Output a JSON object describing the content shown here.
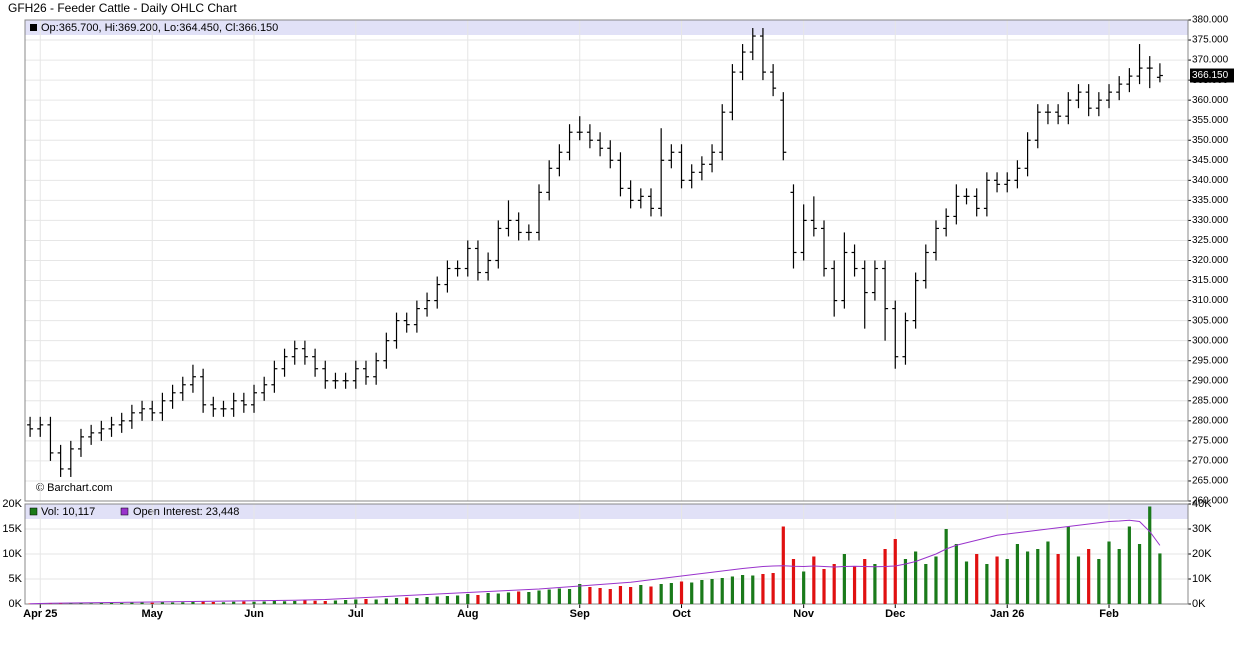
{
  "chart_data": [
    {
      "type": "ohlc",
      "title": "GFH26 - Feeder Cattle - Daily OHLC Chart",
      "legend": "Op:365.700, Hi:369.200, Lo:364.450, Cl:366.150",
      "watermark": "© Barchart.com",
      "color": "#000000",
      "grid": true,
      "categories": [
        null,
        "Apr 25",
        null,
        null,
        null,
        null,
        null,
        null,
        null,
        null,
        null,
        null,
        "May",
        null,
        null,
        null,
        null,
        null,
        null,
        null,
        null,
        null,
        "Jun",
        null,
        null,
        null,
        null,
        null,
        null,
        null,
        null,
        null,
        "Jul",
        null,
        null,
        null,
        null,
        null,
        null,
        null,
        null,
        null,
        null,
        "Aug",
        null,
        null,
        null,
        null,
        null,
        null,
        null,
        null,
        null,
        null,
        "Sep",
        null,
        null,
        null,
        null,
        null,
        null,
        null,
        null,
        null,
        "Oct",
        null,
        null,
        null,
        null,
        null,
        null,
        null,
        null,
        null,
        null,
        null,
        "Nov",
        null,
        null,
        null,
        null,
        null,
        null,
        null,
        null,
        "Dec",
        null,
        null,
        null,
        null,
        null,
        null,
        null,
        null,
        null,
        null,
        "Jan 26",
        null,
        null,
        null,
        null,
        null,
        null,
        null,
        null,
        null,
        "Feb",
        null,
        null,
        null,
        null,
        null
      ],
      "ohlc": [
        [
          279,
          281,
          276,
          278
        ],
        [
          278,
          281,
          276,
          279
        ],
        [
          279,
          281,
          270,
          272
        ],
        [
          272,
          274,
          266,
          268
        ],
        [
          268,
          275,
          266,
          273
        ],
        [
          273,
          278,
          271,
          276
        ],
        [
          276,
          279,
          274,
          277
        ],
        [
          277,
          280,
          275,
          278
        ],
        [
          278,
          281,
          276,
          279
        ],
        [
          279,
          282,
          277,
          280
        ],
        [
          280,
          284,
          278,
          282
        ],
        [
          282,
          285,
          280,
          283
        ],
        [
          283,
          285,
          280,
          282
        ],
        [
          282,
          287,
          280,
          285
        ],
        [
          285,
          289,
          283,
          287
        ],
        [
          287,
          291,
          285,
          289
        ],
        [
          289,
          294,
          287,
          291
        ],
        [
          291,
          293,
          282,
          284
        ],
        [
          284,
          286,
          281,
          283
        ],
        [
          283,
          285,
          281,
          283
        ],
        [
          283,
          287,
          281,
          285
        ],
        [
          285,
          287,
          282,
          284
        ],
        [
          284,
          289,
          282,
          287
        ],
        [
          287,
          291,
          285,
          289
        ],
        [
          289,
          295,
          287,
          293
        ],
        [
          293,
          298,
          291,
          296
        ],
        [
          296,
          300,
          294,
          298
        ],
        [
          298,
          300,
          294,
          296
        ],
        [
          296,
          298,
          291,
          293
        ],
        [
          293,
          295,
          288,
          290
        ],
        [
          290,
          292,
          288,
          290
        ],
        [
          290,
          292,
          288,
          290
        ],
        [
          290,
          295,
          288,
          293
        ],
        [
          293,
          295,
          289,
          291
        ],
        [
          291,
          297,
          289,
          295
        ],
        [
          295,
          302,
          293,
          300
        ],
        [
          300,
          307,
          298,
          305
        ],
        [
          305,
          307,
          302,
          304
        ],
        [
          304,
          310,
          302,
          308
        ],
        [
          308,
          312,
          306,
          310
        ],
        [
          310,
          316,
          308,
          314
        ],
        [
          314,
          320,
          312,
          318
        ],
        [
          318,
          320,
          316,
          318
        ],
        [
          318,
          325,
          316,
          323
        ],
        [
          323,
          325,
          315,
          317
        ],
        [
          317,
          322,
          315,
          320
        ],
        [
          320,
          330,
          318,
          328
        ],
        [
          328,
          335,
          326,
          330
        ],
        [
          330,
          332,
          325,
          327
        ],
        [
          327,
          329,
          325,
          327
        ],
        [
          327,
          339,
          325,
          337
        ],
        [
          337,
          345,
          335,
          343
        ],
        [
          343,
          349,
          341,
          347
        ],
        [
          347,
          354,
          345,
          352
        ],
        [
          352,
          356,
          350,
          352
        ],
        [
          352,
          354,
          348,
          350
        ],
        [
          350,
          352,
          346,
          348
        ],
        [
          348,
          350,
          343,
          345
        ],
        [
          345,
          347,
          336,
          338
        ],
        [
          338,
          340,
          333,
          335
        ],
        [
          335,
          338,
          333,
          336
        ],
        [
          336,
          338,
          331,
          333
        ],
        [
          333,
          353,
          331,
          345
        ],
        [
          345,
          349,
          343,
          347
        ],
        [
          347,
          349,
          338,
          340
        ],
        [
          340,
          344,
          338,
          342
        ],
        [
          342,
          346,
          340,
          344
        ],
        [
          344,
          349,
          342,
          347
        ],
        [
          347,
          359,
          345,
          357
        ],
        [
          357,
          369,
          355,
          367
        ],
        [
          367,
          374,
          365,
          372
        ],
        [
          372,
          378,
          370,
          376
        ],
        [
          376,
          378,
          365,
          367
        ],
        [
          367,
          369,
          361,
          363
        ],
        [
          360,
          362,
          345,
          347
        ],
        [
          337,
          339,
          318,
          322
        ],
        [
          322,
          334,
          320,
          330
        ],
        [
          330,
          336,
          326,
          328
        ],
        [
          328,
          330,
          316,
          318
        ],
        [
          318,
          320,
          306,
          310
        ],
        [
          310,
          327,
          308,
          322
        ],
        [
          322,
          324,
          316,
          318
        ],
        [
          318,
          320,
          303,
          312
        ],
        [
          312,
          320,
          310,
          318
        ],
        [
          318,
          320,
          300,
          308
        ],
        [
          308,
          310,
          293,
          296
        ],
        [
          296,
          307,
          294,
          305
        ],
        [
          305,
          317,
          303,
          315
        ],
        [
          315,
          324,
          313,
          322
        ],
        [
          322,
          330,
          320,
          328
        ],
        [
          328,
          333,
          326,
          331
        ],
        [
          331,
          339,
          329,
          336
        ],
        [
          336,
          338,
          334,
          336
        ],
        [
          336,
          338,
          331,
          333
        ],
        [
          333,
          342,
          331,
          340
        ],
        [
          340,
          342,
          337,
          339
        ],
        [
          339,
          342,
          337,
          340
        ],
        [
          340,
          345,
          338,
          343
        ],
        [
          343,
          352,
          341,
          350
        ],
        [
          350,
          359,
          348,
          357
        ],
        [
          357,
          359,
          354,
          357
        ],
        [
          357,
          359,
          354,
          356
        ],
        [
          356,
          362,
          354,
          360
        ],
        [
          360,
          364,
          358,
          362
        ],
        [
          362,
          364,
          356,
          358
        ],
        [
          358,
          362,
          356,
          360
        ],
        [
          360,
          364,
          358,
          362
        ],
        [
          362,
          366,
          360,
          364
        ],
        [
          364,
          368,
          362,
          366
        ],
        [
          366,
          374,
          364,
          368
        ],
        [
          368,
          371,
          363,
          368
        ],
        [
          365.7,
          369.2,
          364.45,
          366.15
        ]
      ],
      "ylim": [
        260,
        380
      ],
      "yticks": [
        {
          "value": 260,
          "label": "260.000"
        },
        {
          "value": 265,
          "label": "265.000"
        },
        {
          "value": 270,
          "label": "270.000"
        },
        {
          "value": 275,
          "label": "275.000"
        },
        {
          "value": 280,
          "label": "280.000"
        },
        {
          "value": 285,
          "label": "285.000"
        },
        {
          "value": 290,
          "label": "290.000"
        },
        {
          "value": 295,
          "label": "295.000"
        },
        {
          "value": 300,
          "label": "300.000"
        },
        {
          "value": 305,
          "label": "305.000"
        },
        {
          "value": 310,
          "label": "310.000"
        },
        {
          "value": 315,
          "label": "315.000"
        },
        {
          "value": 320,
          "label": "320.000"
        },
        {
          "value": 325,
          "label": "325.000"
        },
        {
          "value": 330,
          "label": "330.000"
        },
        {
          "value": 335,
          "label": "335.000"
        },
        {
          "value": 340,
          "label": "340.000"
        },
        {
          "value": 345,
          "label": "345.000"
        },
        {
          "value": 350,
          "label": "350.000"
        },
        {
          "value": 355,
          "label": "355.000"
        },
        {
          "value": 360,
          "label": "360.000"
        },
        {
          "value": 365,
          "label": "365.000"
        },
        {
          "value": 370,
          "label": "370.000"
        },
        {
          "value": 375,
          "label": "375.000"
        },
        {
          "value": 380,
          "label": "380.000"
        }
      ],
      "last_label": {
        "value": 366.15,
        "label": "366.150"
      }
    },
    {
      "type": "volume",
      "grid": true,
      "series": [
        {
          "name": "Vol: 10,117",
          "color": "#1a7a1a",
          "up_color": "#1a7a1a",
          "down_color": "#e01010",
          "values": [
            100,
            150,
            100,
            200,
            150,
            200,
            150,
            200,
            250,
            200,
            300,
            300,
            250,
            400,
            300,
            350,
            400,
            500,
            400,
            350,
            450,
            500,
            450,
            500,
            600,
            550,
            600,
            700,
            650,
            600,
            700,
            800,
            900,
            1000,
            900,
            1100,
            1200,
            1300,
            1200,
            1400,
            1500,
            1600,
            1700,
            2000,
            1800,
            2200,
            2100,
            2300,
            2500,
            2400,
            2700,
            2900,
            3100,
            3000,
            4000,
            3400,
            3200,
            3000,
            3600,
            3400,
            3800,
            3500,
            4000,
            4200,
            4500,
            4300,
            4800,
            5000,
            5200,
            5500,
            5800,
            5700,
            6000,
            6200,
            15500,
            9000,
            6500,
            9500,
            7000,
            8000,
            10000,
            7500,
            9000,
            8000,
            11000,
            13000,
            9000,
            10500,
            8000,
            9500,
            15000,
            12000,
            8500,
            10000,
            8000,
            9500,
            9000,
            12000,
            10500,
            11000,
            12500,
            10000,
            15500,
            9500,
            11000,
            9000,
            12500,
            11000,
            15500,
            12000,
            19500,
            10117
          ]
        },
        {
          "name": "Open Interest: 23,448",
          "color": "#9933cc",
          "axis": "y2",
          "values": [
            100,
            200,
            300,
            350,
            400,
            450,
            500,
            550,
            600,
            650,
            700,
            750,
            800,
            850,
            900,
            950,
            1000,
            1050,
            1100,
            1150,
            1200,
            1250,
            1300,
            1350,
            1400,
            1450,
            1500,
            1600,
            1700,
            1800,
            2000,
            2200,
            2400,
            2600,
            2800,
            3000,
            3200,
            3400,
            3600,
            3800,
            4000,
            4200,
            4400,
            4600,
            4800,
            5000,
            5200,
            5400,
            5600,
            5800,
            6000,
            6300,
            6600,
            6900,
            7200,
            7500,
            7800,
            8100,
            8400,
            8700,
            9200,
            9700,
            10200,
            10700,
            11200,
            11700,
            12200,
            12700,
            13200,
            13700,
            14200,
            14600,
            15000,
            15200,
            15300,
            15100,
            15000,
            15200,
            15000,
            14800,
            15000,
            15100,
            15000,
            14900,
            15000,
            15200,
            16000,
            17000,
            18500,
            20000,
            22000,
            23500,
            24500,
            25500,
            26500,
            27500,
            28000,
            28500,
            29000,
            29500,
            30000,
            30500,
            31000,
            31500,
            32000,
            32500,
            33000,
            33200,
            33500,
            33000,
            29000,
            23448
          ]
        }
      ],
      "ylim": [
        0,
        20000
      ],
      "yticks": [
        {
          "value": 0,
          "label": "0K"
        },
        {
          "value": 5000,
          "label": "5K"
        },
        {
          "value": 10000,
          "label": "10K"
        },
        {
          "value": 15000,
          "label": "15K"
        },
        {
          "value": 20000,
          "label": "20K"
        }
      ],
      "y2lim": [
        0,
        40000
      ],
      "y2ticks": [
        {
          "value": 0,
          "label": "0K"
        },
        {
          "value": 10000,
          "label": "10K"
        },
        {
          "value": 20000,
          "label": "20K"
        },
        {
          "value": 30000,
          "label": "30K"
        },
        {
          "value": 40000,
          "label": "40K"
        }
      ]
    }
  ]
}
